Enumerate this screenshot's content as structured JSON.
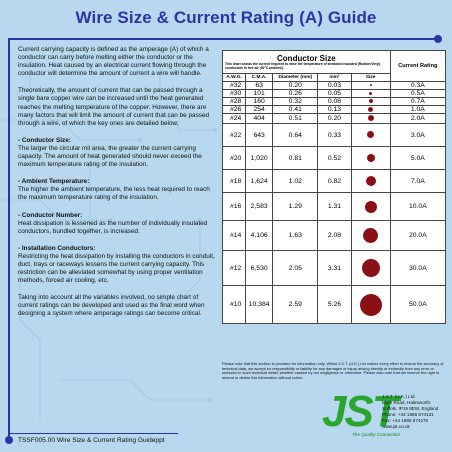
{
  "title": "Wire Size & Current Rating (A) Guide",
  "left": {
    "p1": "Current carrying capacity is defined as the amperage (A) of which a conductor can carry before melting either the conductor or the insulation. Heat caused by an electrical current flowing through the conductor will determine the amount of current a wire will handle.",
    "p2": "Theoretically, the amount of current that can be passed through a single bare copper wire can be increased until the heat generated reaches the melting temperature of the copper. However, there are many factors that will limit the amount of current that can be passed through a wire, of which the key ones are detailed below;",
    "s1_head": "- Conductor Size:",
    "s1_body": "The larger the circular mil area, the greater the current carrying capacity. The amount of heat generated should never exceed the maximum temperature rating of the insulation.",
    "s2_head": "- Ambient Temperature:",
    "s2_body": "The higher the ambient temperature, the less heat required to reach the maximum temperature rating of the insulation.",
    "s3_head": "- Conductor Number:",
    "s3_body": "Heat dissipation is lessened as the number of individually insulated conductors, bundled together, is increased.",
    "s4_head": "- Installation Conductors:",
    "s4_body": "Restricting the heat dissipation by installing the conductors in conduit, duct, trays or raceways lessens the current carrying capacity. This restriction can be alleviated somewhat by using proper ventilation methods, forced air cooling, etc.",
    "p_last": "Taking into account all the variables involved, no simple chart of current ratings can be developed and used as the final word when designing a system where amperage ratings can become critical."
  },
  "footer": "TSSF005.00 Wire Size & Current Rating Guideppt",
  "table": {
    "conductor_size": "Conductor Size",
    "note": "This chart shows the current required to raise the temperature of stranded insulated (Rubber/Vinyl) conductors in free air (30°C ambient).",
    "current_rating": "Current Rating",
    "headers": [
      "A.W.G.",
      "C.M.A.",
      "Diameter (mm)",
      "mm²",
      "Size"
    ],
    "rows": [
      {
        "awg": "#32",
        "cma": "63",
        "dia": "0.20",
        "mm2": "0.03",
        "rating": "0.3A",
        "dot": 2
      },
      {
        "awg": "#30",
        "cma": "101",
        "dia": "0.26",
        "mm2": "0.05",
        "rating": "0.5A",
        "dot": 3
      },
      {
        "awg": "#28",
        "cma": "160",
        "dia": "0.32",
        "mm2": "0.08",
        "rating": "0.7A",
        "dot": 4
      },
      {
        "awg": "#26",
        "cma": "254",
        "dia": "0.41",
        "mm2": "0.13",
        "rating": "1.0A",
        "dot": 5
      },
      {
        "awg": "#24",
        "cma": "404",
        "dia": "0.51",
        "mm2": "0.20",
        "rating": "2.0A",
        "dot": 6
      },
      {
        "awg": "#22",
        "cma": "643",
        "dia": "0.64",
        "mm2": "0.33",
        "rating": "3.0A",
        "dot": 7
      },
      {
        "awg": "#20",
        "cma": "1,020",
        "dia": "0.81",
        "mm2": "0.52",
        "rating": "5.0A",
        "dot": 8
      },
      {
        "awg": "#18",
        "cma": "1,624",
        "dia": "1.02",
        "mm2": "0.82",
        "rating": "7.0A",
        "dot": 10
      },
      {
        "awg": "#16",
        "cma": "2,583",
        "dia": "1.29",
        "mm2": "1.31",
        "rating": "10.0A",
        "dot": 12
      },
      {
        "awg": "#14",
        "cma": "4,106",
        "dia": "1.63",
        "mm2": "2.08",
        "rating": "20.0A",
        "dot": 15
      },
      {
        "awg": "#12",
        "cma": "6,530",
        "dia": "2.05",
        "mm2": "3.31",
        "rating": "30.0A",
        "dot": 18
      },
      {
        "awg": "#10",
        "cma": "10,384",
        "dia": "2.59",
        "mm2": "5.26",
        "rating": "50.0A",
        "dot": 22
      }
    ]
  },
  "disclaimer": "Please note that this section is provided for information only. Whilst J.S.T. (U.K.) Ltd makes every effort to ensure the accuracy of technical data, we accept no responsibility or liability for any damages or injury arising directly or indirectly from any error or omission in such technical detail, whether caused by our negligence or otherwise. Please also note that we reserve the right to amend or delete this information without notice.",
  "logo": {
    "text": "JST",
    "tagline": "The Quality Connection",
    "color": "#2aa52e"
  },
  "address": [
    "J.S.T. (U.K.) Ltd.",
    "Blyth Road, Halesworth,",
    "Suffolk, IP19 8EW, England",
    "Phone: +44 1986 874131",
    "Fax: +44 1986 874276",
    "www.jst.co.uk"
  ],
  "colors": {
    "title": "#2d34a8",
    "background": "#b7d8ee",
    "dot": "#8b1016"
  }
}
